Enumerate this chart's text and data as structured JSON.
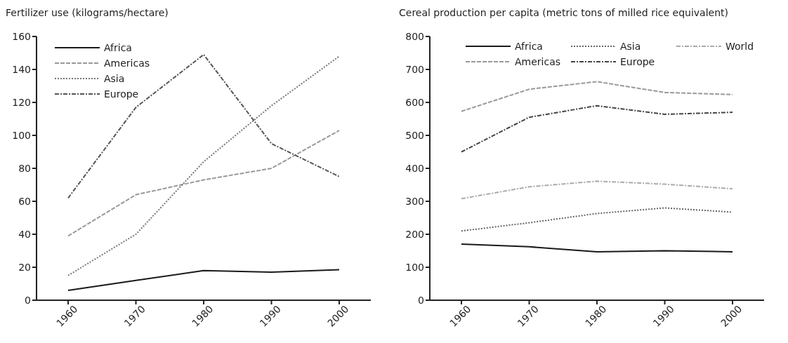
{
  "chart_data": [
    {
      "type": "line",
      "title": "Fertilizer use (kilograms/hectare)",
      "categories": [
        "1960",
        "1970",
        "1980",
        "1990",
        "2000"
      ],
      "ylim": [
        0,
        160
      ],
      "yticks": [
        0,
        20,
        40,
        60,
        80,
        100,
        120,
        140,
        160
      ],
      "legend": "top left",
      "grid": false,
      "series": [
        {
          "name": "Africa",
          "color": "#1a1a1a",
          "line_style": "solid",
          "values": [
            6,
            12,
            18,
            17,
            18.5
          ]
        },
        {
          "name": "Americas",
          "color": "#999999",
          "line_style": "dashed",
          "values": [
            39,
            64,
            73,
            80,
            103
          ]
        },
        {
          "name": "Asia",
          "color": "#777777",
          "line_style": "dotted",
          "values": [
            15,
            40,
            84,
            118,
            148
          ]
        },
        {
          "name": "Europe",
          "color": "#555555",
          "line_style": "dashdot",
          "values": [
            62,
            117,
            149,
            95,
            75
          ]
        }
      ]
    },
    {
      "type": "line",
      "title": "Cereal production per capita (metric tons of milled rice equivalent)",
      "categories": [
        "1960",
        "1970",
        "1980",
        "1990",
        "2000"
      ],
      "ylim": [
        0,
        800
      ],
      "yticks": [
        0,
        100,
        200,
        300,
        400,
        500,
        600,
        700,
        800
      ],
      "legend": "top",
      "grid": false,
      "series": [
        {
          "name": "Africa",
          "color": "#1a1a1a",
          "line_style": "solid",
          "values": [
            170,
            162,
            147,
            150,
            147
          ]
        },
        {
          "name": "Asia",
          "color": "#666666",
          "line_style": "dotted",
          "values": [
            210,
            235,
            263,
            280,
            267
          ]
        },
        {
          "name": "World",
          "color": "#aaaaaa",
          "line_style": "dashdot",
          "values": [
            308,
            344,
            361,
            352,
            338
          ]
        },
        {
          "name": "Americas",
          "color": "#999999",
          "line_style": "dashed",
          "values": [
            573,
            640,
            663,
            630,
            624
          ]
        },
        {
          "name": "Europe",
          "color": "#444444",
          "line_style": "dashdot",
          "values": [
            450,
            555,
            590,
            564,
            570
          ]
        }
      ]
    }
  ]
}
